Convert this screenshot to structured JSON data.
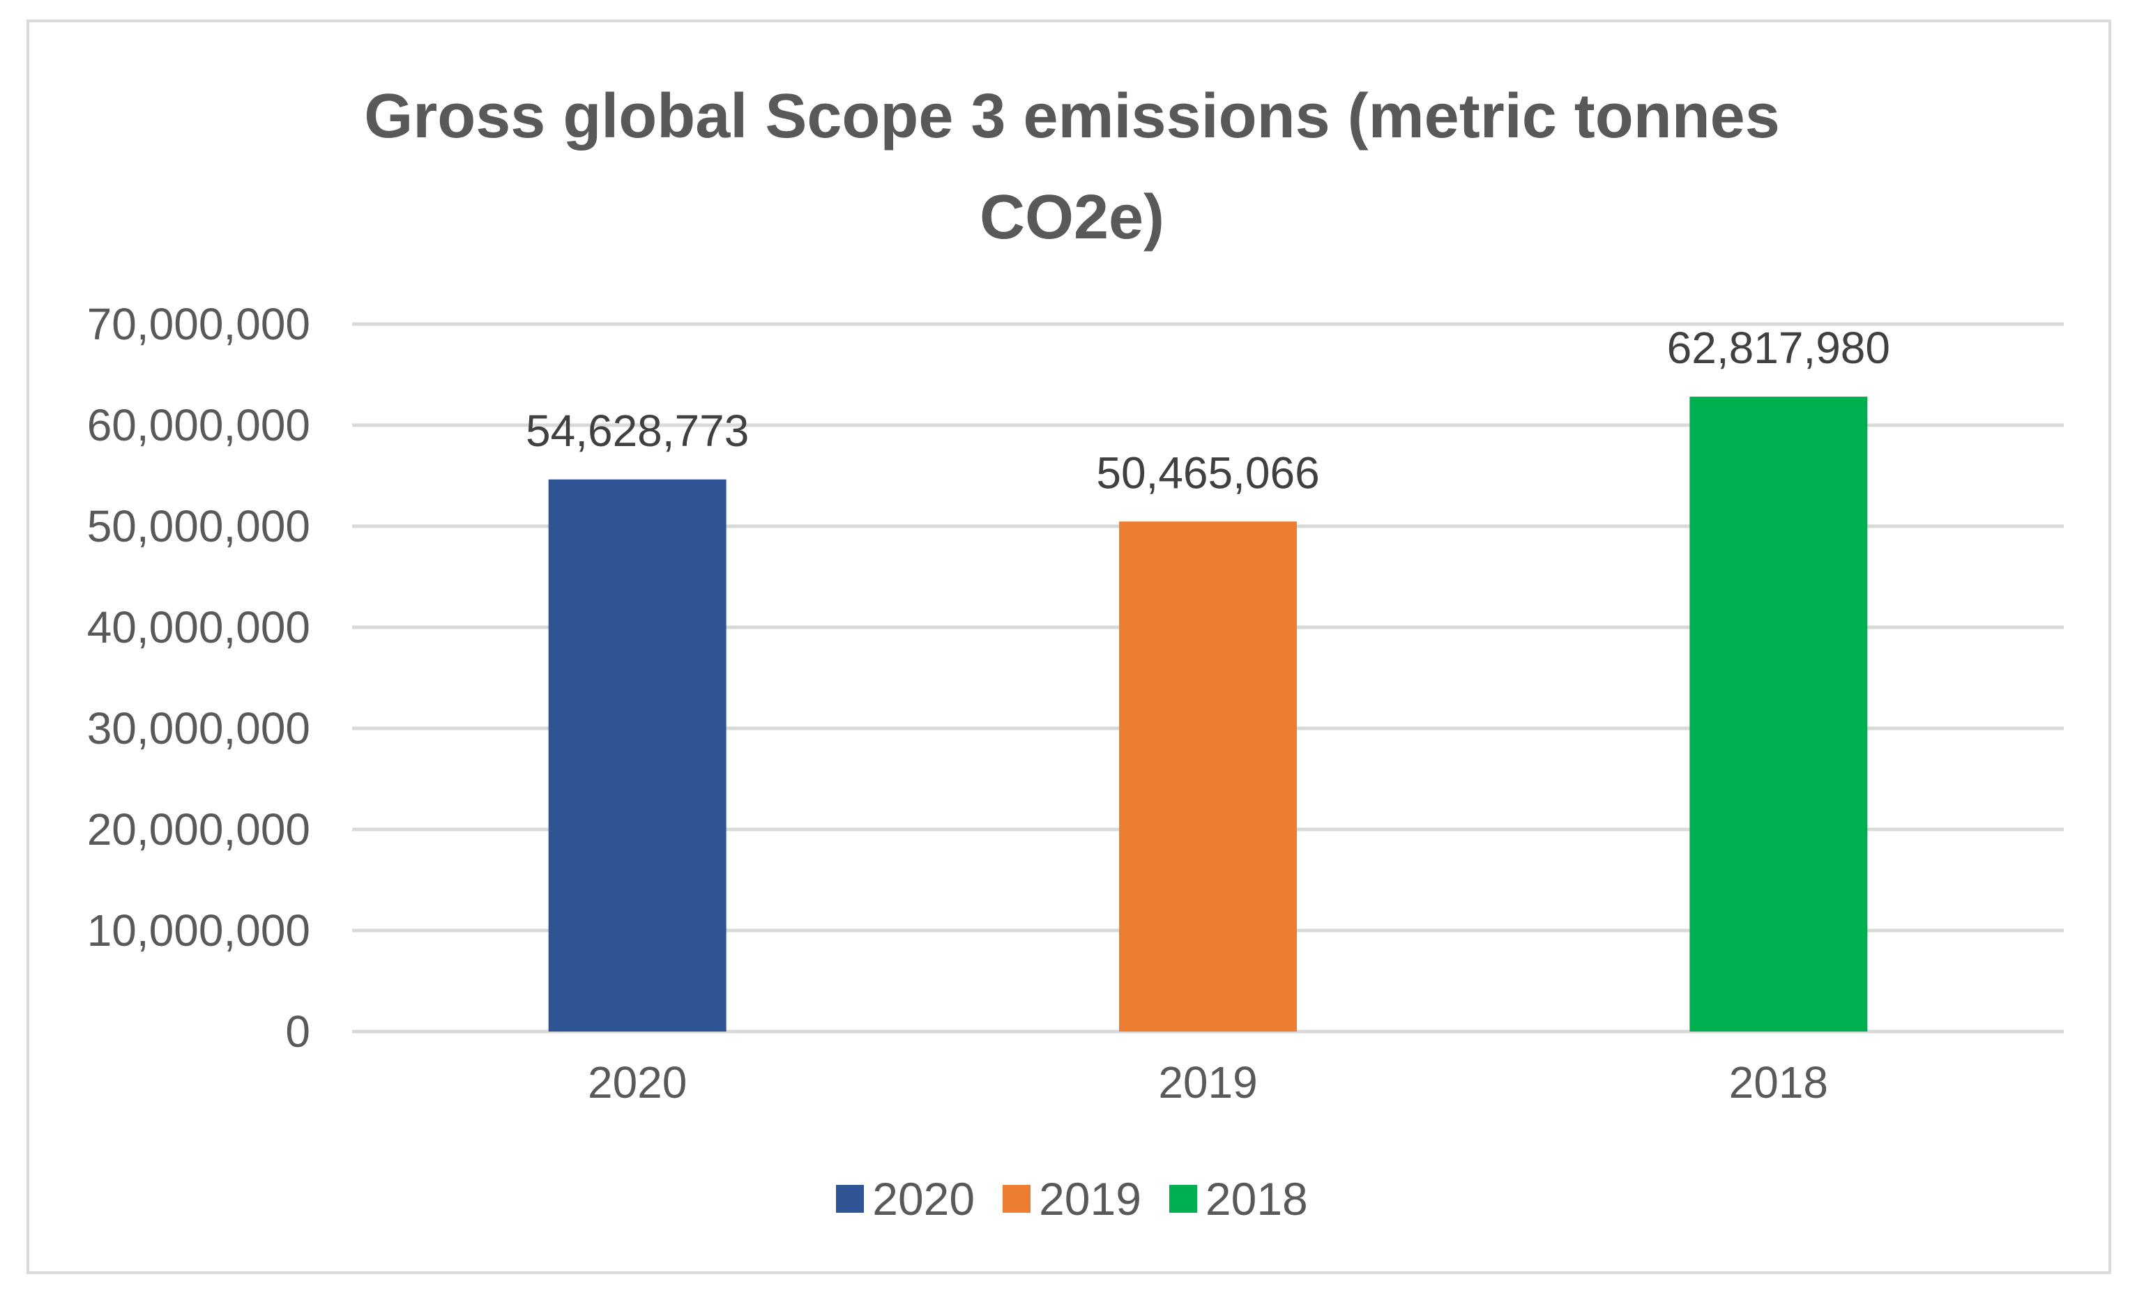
{
  "chart_data": {
    "type": "bar",
    "title_lines": [
      "Gross global Scope 3 emissions (metric tonnes",
      "CO2e)"
    ],
    "categories": [
      "2020",
      "2019",
      "2018"
    ],
    "values": [
      54628773,
      50465066,
      62817980
    ],
    "value_labels": [
      "54,628,773",
      "50,465,066",
      "62,817,980"
    ],
    "colors": [
      "#2f5597",
      "#ed7d31",
      "#00b050"
    ],
    "ylim": [
      0,
      70000000
    ],
    "y_ticks": [
      0,
      10000000,
      20000000,
      30000000,
      40000000,
      50000000,
      60000000,
      70000000
    ],
    "y_tick_labels": [
      "0",
      "10,000,000",
      "20,000,000",
      "30,000,000",
      "40,000,000",
      "50,000,000",
      "60,000,000",
      "70,000,000"
    ],
    "xlabel": "",
    "ylabel": "",
    "grid": true,
    "legend": {
      "position": "bottom",
      "entries": [
        {
          "label": "2020",
          "color": "#2f5597"
        },
        {
          "label": "2019",
          "color": "#ed7d31"
        },
        {
          "label": "2018",
          "color": "#00b050"
        }
      ]
    }
  }
}
